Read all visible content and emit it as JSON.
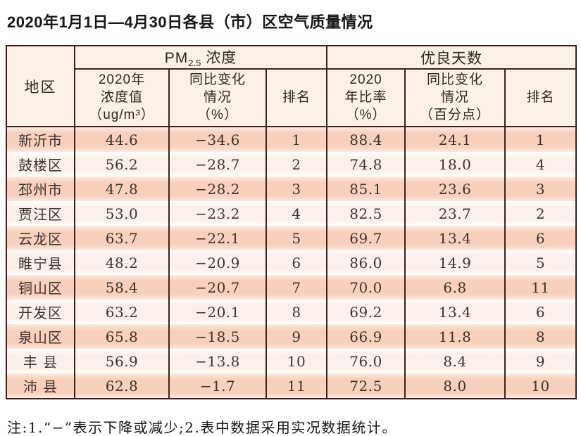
{
  "page": {
    "title": "2020年1月1日—4月30日各县（市）区空气质量情况"
  },
  "table": {
    "header": {
      "region": "地区",
      "pm_group": {
        "prefix": "PM",
        "sub": "2.5",
        "suffix": " 浓度"
      },
      "days_group": "优良天数",
      "sub": [
        "2020年\n浓度值\n（ug/m³）",
        "同比变化\n情况\n（%）",
        "排名",
        "2020\n年比率\n（%）",
        "同比变化\n情况\n（百分点）",
        "排名"
      ]
    },
    "columns": [
      "region",
      "pm_value",
      "pm_change",
      "pm_rank",
      "days_rate",
      "days_change",
      "days_rank"
    ],
    "rows": [
      {
        "region": "新沂市",
        "pm_value": "44.6",
        "pm_change": "−34.6",
        "pm_rank": "1",
        "days_rate": "88.4",
        "days_change": "24.1",
        "days_rank": "1"
      },
      {
        "region": "鼓楼区",
        "pm_value": "56.2",
        "pm_change": "−28.7",
        "pm_rank": "2",
        "days_rate": "74.8",
        "days_change": "18.0",
        "days_rank": "4"
      },
      {
        "region": "邳州市",
        "pm_value": "47.8",
        "pm_change": "−28.2",
        "pm_rank": "3",
        "days_rate": "85.1",
        "days_change": "23.6",
        "days_rank": "3"
      },
      {
        "region": "贾汪区",
        "pm_value": "53.0",
        "pm_change": "−23.2",
        "pm_rank": "4",
        "days_rate": "82.5",
        "days_change": "23.7",
        "days_rank": "2"
      },
      {
        "region": "云龙区",
        "pm_value": "63.7",
        "pm_change": "−22.1",
        "pm_rank": "5",
        "days_rate": "69.7",
        "days_change": "13.4",
        "days_rank": "6"
      },
      {
        "region": "睢宁县",
        "pm_value": "48.2",
        "pm_change": "−20.9",
        "pm_rank": "6",
        "days_rate": "86.0",
        "days_change": "14.9",
        "days_rank": "5"
      },
      {
        "region": "铜山区",
        "pm_value": "58.4",
        "pm_change": "−20.7",
        "pm_rank": "7",
        "days_rate": "70.0",
        "days_change": "6.8",
        "days_rank": "11"
      },
      {
        "region": "开发区",
        "pm_value": "63.2",
        "pm_change": "−20.1",
        "pm_rank": "8",
        "days_rate": "69.2",
        "days_change": "13.4",
        "days_rank": "6"
      },
      {
        "region": "泉山区",
        "pm_value": "65.8",
        "pm_change": "−18.5",
        "pm_rank": "9",
        "days_rate": "66.9",
        "days_change": "11.8",
        "days_rank": "8"
      },
      {
        "region": "丰 县",
        "pm_value": "56.9",
        "pm_change": "−13.8",
        "pm_rank": "10",
        "days_rate": "76.0",
        "days_change": "8.4",
        "days_rank": "9"
      },
      {
        "region": "沛 县",
        "pm_value": "62.8",
        "pm_change": "−1.7",
        "pm_rank": "11",
        "days_rate": "72.5",
        "days_change": "8.0",
        "days_rank": "10"
      }
    ]
  },
  "footnote": "注:1.“−”表示下降或减少;2.表中数据采用实况数据统计。",
  "colors": {
    "border": "#3c2320",
    "header_bg": "#fdf1e7",
    "row_salmon": "#f9d0bd",
    "row_cream": "#fcf1ea",
    "text": "#40322d"
  }
}
